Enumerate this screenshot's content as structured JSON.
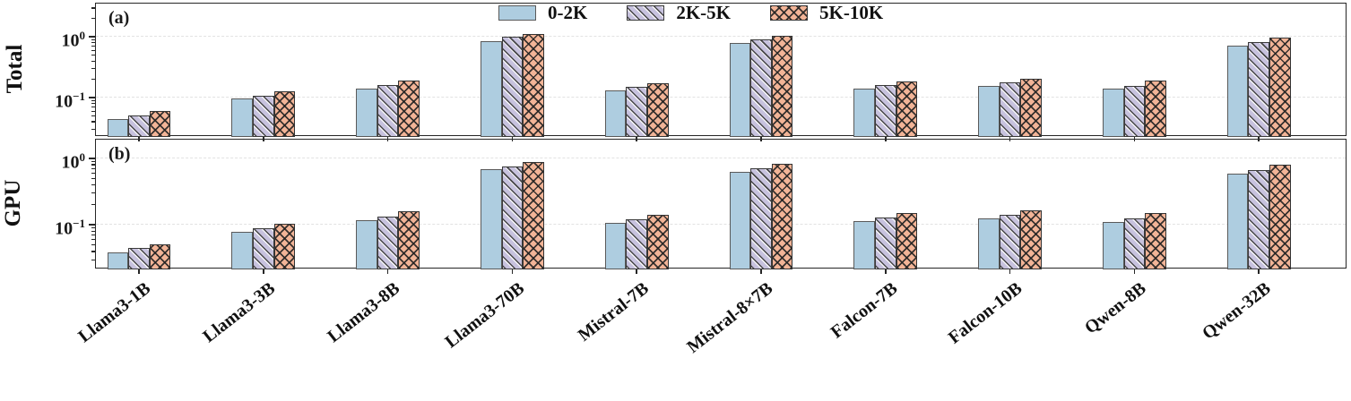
{
  "legend": {
    "items": [
      {
        "label": "0-2K",
        "fill": "#aecde0",
        "hatch": "none",
        "edge": "#5a5a5a"
      },
      {
        "label": "2K-5K",
        "fill": "#c7c2de",
        "hatch": "diag",
        "edge": "#3a3a3a"
      },
      {
        "label": "5K-10K",
        "fill": "#f2b497",
        "hatch": "cross",
        "edge": "#333333"
      }
    ]
  },
  "colors": {
    "grid": "#e2e2e2",
    "spine": "#262626",
    "background": "#ffffff"
  },
  "chart_data": [
    {
      "type": "bar",
      "panel_tag": "(a)",
      "ylabel": "Total",
      "yscale": "log",
      "ylim": [
        0.0225,
        3.55
      ],
      "grid": "dashed-horizontal",
      "legend_position": "top-center",
      "yticks": [
        {
          "value": 1,
          "base": "10",
          "exp": "0"
        },
        {
          "value": 0.1,
          "base": "10",
          "exp": "−1"
        }
      ],
      "categories": [
        "Llama3-1B",
        "Llama3-3B",
        "Llama3-8B",
        "Llama3-70B",
        "Mistral-7B",
        "Mistral-8×7B",
        "Falcon-7B",
        "Falcon-10B",
        "Qwen-8B",
        "Qwen-32B"
      ],
      "series": [
        {
          "name": "0-2K",
          "values": [
            0.045,
            0.096,
            0.143,
            0.86,
            0.133,
            0.79,
            0.141,
            0.155,
            0.139,
            0.73
          ]
        },
        {
          "name": "2K-5K",
          "values": [
            0.051,
            0.108,
            0.163,
            1.0,
            0.15,
            0.9,
            0.161,
            0.178,
            0.157,
            0.83
          ]
        },
        {
          "name": "5K-10K",
          "values": [
            0.06,
            0.128,
            0.19,
            1.12,
            0.175,
            1.05,
            0.188,
            0.207,
            0.19,
            0.98
          ]
        }
      ]
    },
    {
      "type": "bar",
      "panel_tag": "(b)",
      "ylabel": "GPU",
      "yscale": "log",
      "ylim": [
        0.0215,
        1.9
      ],
      "grid": "dashed-horizontal",
      "yticks": [
        {
          "value": 1,
          "base": "10",
          "exp": "0"
        },
        {
          "value": 0.1,
          "base": "10",
          "exp": "−1"
        }
      ],
      "categories": [
        "Llama3-1B",
        "Llama3-3B",
        "Llama3-8B",
        "Llama3-70B",
        "Mistral-7B",
        "Mistral-8×7B",
        "Falcon-7B",
        "Falcon-10B",
        "Qwen-8B",
        "Qwen-32B"
      ],
      "series": [
        {
          "name": "0-2K",
          "values": [
            0.039,
            0.079,
            0.118,
            0.68,
            0.107,
            0.62,
            0.113,
            0.124,
            0.112,
            0.58
          ]
        },
        {
          "name": "2K-5K",
          "values": [
            0.045,
            0.09,
            0.135,
            0.76,
            0.122,
            0.71,
            0.128,
            0.141,
            0.126,
            0.67
          ]
        },
        {
          "name": "5K-10K",
          "values": [
            0.051,
            0.104,
            0.158,
            0.89,
            0.142,
            0.83,
            0.153,
            0.166,
            0.15,
            0.79
          ]
        }
      ]
    }
  ]
}
